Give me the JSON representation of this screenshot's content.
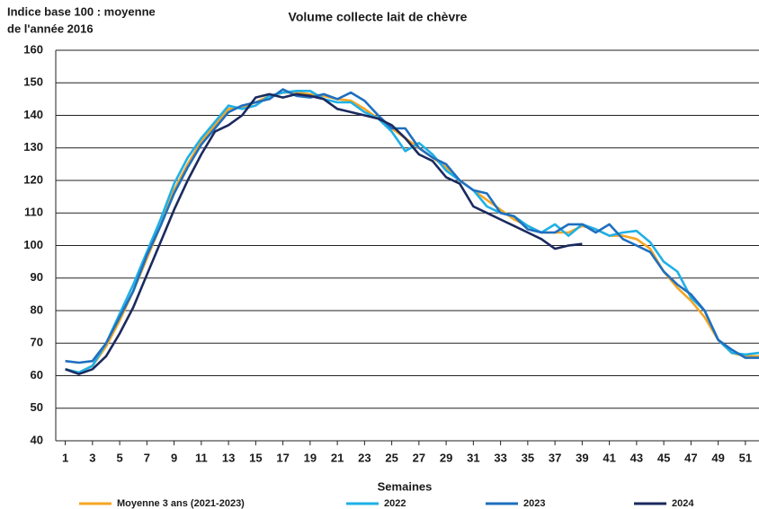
{
  "chart_data": {
    "type": "line",
    "title": "Volume collecte lait de chèvre",
    "ylabel": [
      "Indice base 100 : moyenne",
      "de l'année 2016"
    ],
    "xlabel": "Semaines",
    "x": [
      1,
      2,
      3,
      4,
      5,
      6,
      7,
      8,
      9,
      10,
      11,
      12,
      13,
      14,
      15,
      16,
      17,
      18,
      19,
      20,
      21,
      22,
      23,
      24,
      25,
      26,
      27,
      28,
      29,
      30,
      31,
      32,
      33,
      34,
      35,
      36,
      37,
      38,
      39,
      40,
      41,
      42,
      43,
      44,
      45,
      46,
      47,
      48,
      49,
      50,
      51,
      52
    ],
    "xlim": [
      0.3,
      52
    ],
    "xticks": [
      1,
      3,
      5,
      7,
      9,
      11,
      13,
      15,
      17,
      19,
      21,
      23,
      25,
      27,
      29,
      31,
      33,
      35,
      37,
      39,
      41,
      43,
      45,
      47,
      49,
      51
    ],
    "ylim": [
      40,
      160
    ],
    "yticks": [
      40,
      50,
      60,
      70,
      80,
      90,
      100,
      110,
      120,
      130,
      140,
      150,
      160
    ],
    "grid": true,
    "legend": "bottom",
    "series": [
      {
        "name": "Moyenne 3 ans (2021-2023)",
        "color": "#f5a623",
        "values": [
          62,
          61,
          63,
          69,
          77,
          86,
          96,
          106,
          117,
          125,
          132,
          137,
          142,
          142.5,
          144,
          146,
          147,
          147,
          146.5,
          146,
          145,
          144.5,
          142,
          139,
          136,
          133,
          130,
          127,
          124,
          120,
          117,
          114,
          111,
          108,
          106,
          104,
          104,
          104,
          106,
          105,
          103,
          103,
          102,
          99,
          92,
          87,
          83,
          78,
          71,
          67,
          66,
          66
        ]
      },
      {
        "name": "2022",
        "color": "#1fb0e6",
        "values": [
          62,
          61,
          63,
          70,
          79,
          88,
          98,
          108,
          119,
          127,
          133,
          138,
          143,
          142,
          143,
          146,
          147,
          147.5,
          147.5,
          145,
          144,
          144,
          141,
          139,
          135,
          129,
          131.5,
          128,
          123,
          120,
          117,
          112,
          110,
          109,
          106,
          104,
          106.5,
          103,
          106.5,
          105,
          103,
          104,
          104.5,
          101,
          95,
          92,
          84,
          80,
          71,
          67,
          66.5,
          67
        ]
      },
      {
        "name": "2023",
        "color": "#1f6fbf",
        "values": [
          64.5,
          64,
          64.5,
          70,
          78,
          86,
          97,
          106,
          116,
          124,
          131,
          136,
          141,
          143,
          144,
          145,
          148,
          146,
          145.5,
          146.5,
          145,
          147,
          144.5,
          140,
          136,
          136,
          130,
          127,
          125,
          120,
          117,
          116,
          110,
          109,
          105,
          104,
          104,
          106.5,
          106.5,
          104,
          106.5,
          102,
          100,
          98,
          92,
          88,
          85,
          80,
          71,
          68,
          65.5,
          65.5
        ]
      },
      {
        "name": "2024",
        "color": "#1b2a5e",
        "values": [
          62,
          60.5,
          62,
          66,
          73,
          81,
          91,
          101,
          111,
          120,
          128,
          135,
          137,
          140,
          145.5,
          146.5,
          145.5,
          146.5,
          146,
          145,
          142,
          141,
          140,
          139,
          137,
          133,
          128,
          126,
          121,
          119,
          112,
          110,
          108,
          106,
          104,
          102,
          99,
          100,
          100.5,
          null,
          null,
          null,
          null,
          null,
          null,
          null,
          null,
          null,
          null,
          null,
          null,
          null
        ]
      }
    ]
  }
}
